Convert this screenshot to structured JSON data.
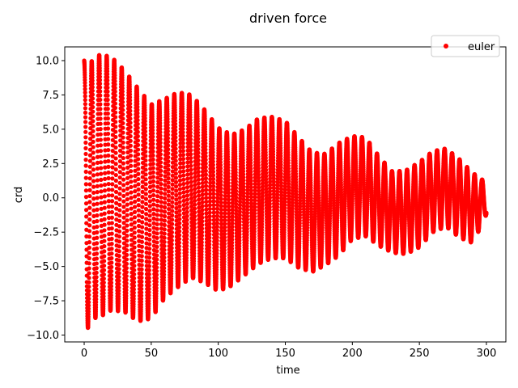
{
  "chart_data": {
    "type": "scatter",
    "title": "driven force",
    "xlabel": "time",
    "ylabel": "crd",
    "xlim": [
      -14.5,
      314.5
    ],
    "ylim": [
      -10.5,
      11.0
    ],
    "x_ticks": [
      0,
      50,
      100,
      150,
      200,
      250,
      300
    ],
    "x_tick_labels": [
      "0",
      "50",
      "100",
      "150",
      "200",
      "250",
      "300"
    ],
    "y_ticks": [
      -10.0,
      -7.5,
      -5.0,
      -2.5,
      0.0,
      2.5,
      5.0,
      7.5,
      10.0
    ],
    "y_tick_labels": [
      "−10.0",
      "−7.5",
      "−5.0",
      "−2.5",
      "0.0",
      "2.5",
      "5.0",
      "7.5",
      "10.0"
    ],
    "grid": false,
    "legend_position": "top-right",
    "series": [
      {
        "name": "euler",
        "color": "#ff0000",
        "marker": "circle",
        "oscillation_period": 5.6,
        "envelope": [
          {
            "x": 0,
            "max": 10.0,
            "min": -1.5
          },
          {
            "x": 2,
            "max": 8.8,
            "min": -9.6
          },
          {
            "x": 7,
            "max": 10.4,
            "min": -8.8
          },
          {
            "x": 13,
            "max": 10.4,
            "min": -8.6
          },
          {
            "x": 20,
            "max": 10.3,
            "min": -8.2
          },
          {
            "x": 30,
            "max": 9.3,
            "min": -8.3
          },
          {
            "x": 40,
            "max": 8.0,
            "min": -9.0
          },
          {
            "x": 50,
            "max": 6.8,
            "min": -8.8
          },
          {
            "x": 60,
            "max": 7.2,
            "min": -7.3
          },
          {
            "x": 70,
            "max": 7.7,
            "min": -6.5
          },
          {
            "x": 80,
            "max": 7.5,
            "min": -5.8
          },
          {
            "x": 90,
            "max": 6.4,
            "min": -6.2
          },
          {
            "x": 100,
            "max": 5.1,
            "min": -6.8
          },
          {
            "x": 110,
            "max": 4.6,
            "min": -6.4
          },
          {
            "x": 120,
            "max": 5.0,
            "min": -5.6
          },
          {
            "x": 130,
            "max": 5.8,
            "min": -4.8
          },
          {
            "x": 140,
            "max": 5.9,
            "min": -4.4
          },
          {
            "x": 150,
            "max": 5.6,
            "min": -4.4
          },
          {
            "x": 160,
            "max": 4.4,
            "min": -5.1
          },
          {
            "x": 170,
            "max": 3.3,
            "min": -5.4
          },
          {
            "x": 180,
            "max": 3.2,
            "min": -4.9
          },
          {
            "x": 190,
            "max": 4.0,
            "min": -4.2
          },
          {
            "x": 200,
            "max": 4.5,
            "min": -3.0
          },
          {
            "x": 210,
            "max": 4.4,
            "min": -2.8
          },
          {
            "x": 220,
            "max": 3.0,
            "min": -3.5
          },
          {
            "x": 230,
            "max": 1.9,
            "min": -4.0
          },
          {
            "x": 240,
            "max": 2.0,
            "min": -4.1
          },
          {
            "x": 250,
            "max": 2.6,
            "min": -3.6
          },
          {
            "x": 260,
            "max": 3.4,
            "min": -2.5
          },
          {
            "x": 270,
            "max": 3.6,
            "min": -2.1
          },
          {
            "x": 280,
            "max": 2.8,
            "min": -2.9
          },
          {
            "x": 290,
            "max": 1.8,
            "min": -3.3
          },
          {
            "x": 300,
            "max": 1.1,
            "min": -1.2
          }
        ]
      }
    ]
  }
}
